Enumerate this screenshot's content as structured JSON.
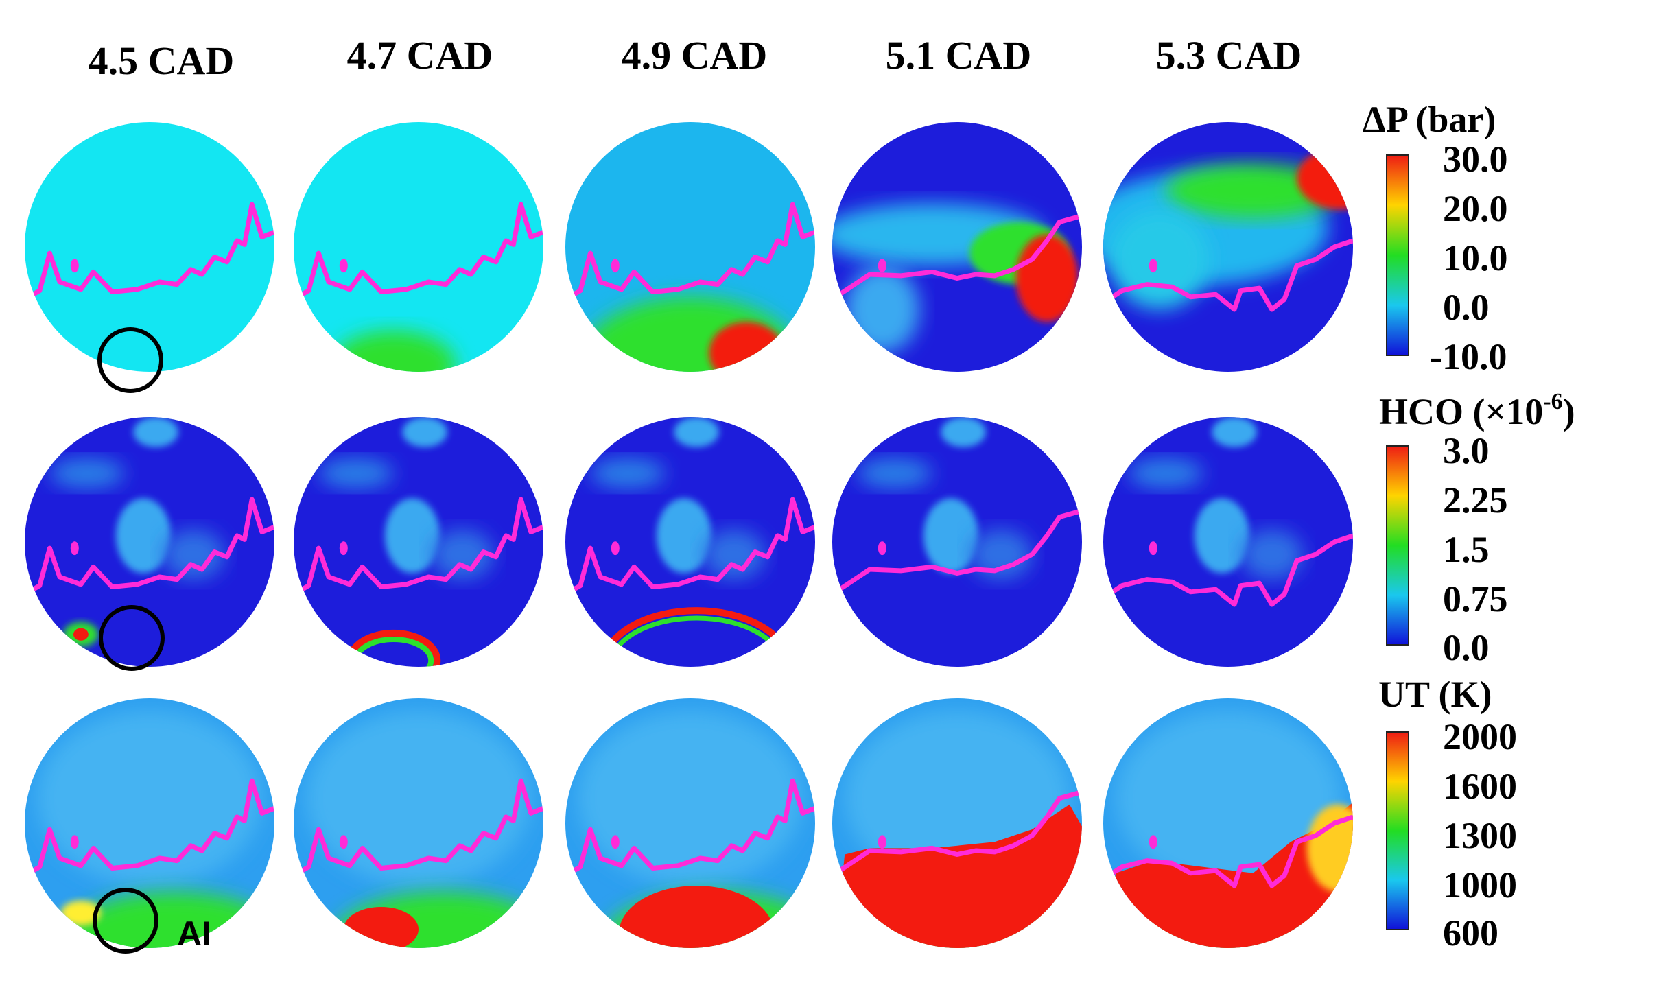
{
  "columns": [
    {
      "label": "4.5 CAD"
    },
    {
      "label": "4.7 CAD"
    },
    {
      "label": "4.9 CAD"
    },
    {
      "label": "5.1 CAD"
    },
    {
      "label": "5.3 CAD"
    }
  ],
  "rows": [
    {
      "key": "dp",
      "legend_title": "ΔP (bar)",
      "tick_labels": [
        "30.0",
        "20.0",
        "10.0",
        "0.0",
        "-10.0"
      ],
      "colorbar_colors": [
        "#ee1c14",
        "#ffd400",
        "#22dd22",
        "#1ac8ee",
        "#1010d8"
      ]
    },
    {
      "key": "hco",
      "legend_title": "HCO (×10",
      "legend_superscript": "-6",
      "legend_close": ")",
      "tick_labels": [
        "3.0",
        "2.25",
        "1.5",
        "0.75",
        "0.0"
      ],
      "colorbar_colors": [
        "#ee1c14",
        "#ffd400",
        "#22dd22",
        "#1ac8ee",
        "#1010d8"
      ]
    },
    {
      "key": "ut",
      "legend_title": "UT (K)",
      "tick_labels": [
        "2000",
        "1600",
        "1300",
        "1000",
        "600"
      ],
      "colorbar_colors": [
        "#ee1c14",
        "#ffd400",
        "#22dd22",
        "#1ac8ee",
        "#1010d8"
      ]
    }
  ],
  "annotations": {
    "autoignition_label": "AI"
  },
  "colors": {
    "cyan_field": "#13e6f2",
    "blue_field": "#1d1ddb",
    "light_blue_field": "#3aa9f0",
    "green": "#2de02d",
    "red": "#f31b10",
    "flame_front": "#ff2bd8",
    "circle_marker": "#000000"
  }
}
